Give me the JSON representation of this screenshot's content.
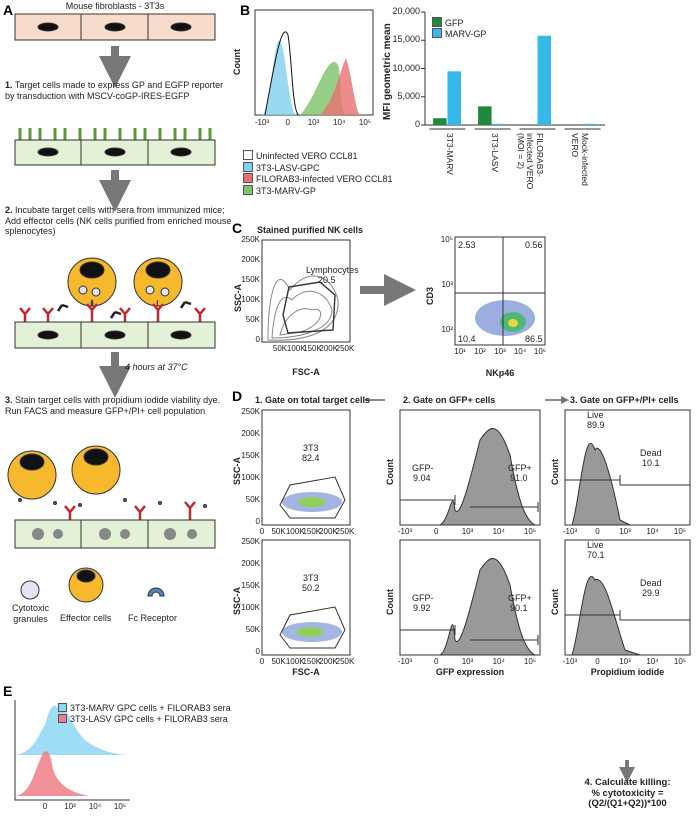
{
  "panel_a": {
    "label": "A",
    "top_title": "Mouse fibroblasts - 3T3s",
    "steps": [
      {
        "number": "1.",
        "text": "Target cells made to express GP and EGFP reporter by transduction with MSCV-coGP-IRES-EGFP"
      },
      {
        "number": "2.",
        "text": "Incubate target cells with sera from immunized mice; Add effector cells (NK cells purified from enriched mouse splenocytes)"
      },
      {
        "number": "3.",
        "text": "Stain target cells with propidium iodide viability dye. Run FACS and measure GFP+/PI+ cell population"
      }
    ],
    "incubation": "4 hours at 37°C",
    "legend": [
      "Cytotoxic granules",
      "Effector cells",
      "Fc Receptor"
    ]
  },
  "panel_b": {
    "label": "B",
    "histogram": {
      "ylabel": "Count",
      "xticks": [
        "-10³",
        "0",
        "10³",
        "10⁴",
        "10⁵"
      ],
      "legend": [
        {
          "name": "Uninfected VERO CCL81",
          "color": "#ffffff"
        },
        {
          "name": "3T3-LASV-GPC",
          "color": "#7fd0ef"
        },
        {
          "name": "FILORAB3-infected VERO CCL81",
          "color": "#e8706e"
        },
        {
          "name": "3T3-MARV-GP",
          "color": "#7cc26a"
        }
      ]
    },
    "bar_chart": {
      "type": "bar",
      "ylabel": "MFI geometric mean",
      "categories": [
        "3T3-MARV",
        "3T3-LASV",
        "FILORAB3-infected VERO (MOI = 2)",
        "Mock-infected VERO"
      ],
      "series": [
        {
          "name": "GFP",
          "color": "#1f8a3c",
          "values": [
            1200,
            3300,
            0,
            0
          ]
        },
        {
          "name": "MARV-GP",
          "color": "#36b8ea",
          "values": [
            9500,
            200,
            15800,
            200
          ]
        }
      ],
      "ylim": [
        0,
        20000
      ],
      "yticks": [
        0,
        {
          "value": 5000,
          "label": "5,000"
        },
        {
          "value": 10000,
          "label": "10,000"
        },
        {
          "value": 15000,
          "label": "15,000"
        },
        {
          "value": 20000,
          "label": "20,000"
        }
      ]
    }
  },
  "panel_c": {
    "label": "C",
    "title": "Stained purified NK cells",
    "contour": {
      "ylabel": "SSC-A",
      "xlabel": "FSC-A",
      "yticks": [
        "0",
        "50K",
        "100K",
        "150K",
        "200K",
        "250K"
      ],
      "xticks": [
        "50K",
        "100K",
        "150K",
        "200K",
        "250K"
      ],
      "gate_name": "Lymphocytes",
      "gate_value": "20.5"
    },
    "quadrant": {
      "ylabel": "CD3",
      "xlabel": "NKp46",
      "yticks": [
        "10⁵",
        "10³",
        "10²"
      ],
      "xticks": [
        "10¹",
        "10²",
        "10³",
        "10⁴",
        "10⁵"
      ],
      "quadrants": [
        "2.53",
        "0.56",
        "10.4",
        "86.5"
      ]
    }
  },
  "panel_d": {
    "label": "D",
    "headers": [
      "1. Gate on total target cells",
      "2. Gate on GFP+ cells",
      "3. Gate on GFP+/PI+ cells"
    ],
    "scatter_ylabel": "SSC-A",
    "scatter_xlabel": "FSC-A",
    "scatter_yticks": [
      "250K",
      "200K",
      "150K",
      "100K",
      "50K",
      "0"
    ],
    "scatter_xticks": [
      "0",
      "50K",
      "100K",
      "150K",
      "200K",
      "250K"
    ],
    "hist_ylabel": "Count",
    "gfp_xlabel": "GFP expression",
    "pi_xlabel": "Propidium iodide",
    "hist_xticks": [
      "-10³",
      "0",
      "10³",
      "10⁴",
      "10⁵"
    ],
    "rows": [
      {
        "gate_name": "3T3",
        "gate_value": "82.4",
        "gfp_neg": "GFP-",
        "gfp_neg_value": "9.04",
        "gfp_pos": "GFP+",
        "gfp_pos_value": "91.0",
        "live": "Live",
        "live_value": "89.9",
        "dead": "Dead",
        "dead_value": "10.1"
      },
      {
        "gate_name": "3T3",
        "gate_value": "50.2",
        "gfp_neg": "GFP-",
        "gfp_neg_value": "9.92",
        "gfp_pos": "GFP+",
        "gfp_pos_value": "90.1",
        "live": "Live",
        "live_value": "70.1",
        "dead": "Dead",
        "dead_value": "29.9"
      }
    ],
    "calculation": [
      "4. Calculate killing:",
      "% cytotoxicity =",
      "(Q2/(Q1+Q2))*100"
    ]
  },
  "panel_e": {
    "label": "E",
    "legend": [
      {
        "name": "3T3-MARV GPC cells + FILORAB3 sera",
        "color": "#8ed6f3"
      },
      {
        "name": "3T3-LASV GPC cells + FILORAB3 sera",
        "color": "#ee7d87"
      }
    ],
    "xticks": [
      "0",
      "10³",
      "10⁴",
      "10⁵"
    ]
  }
}
